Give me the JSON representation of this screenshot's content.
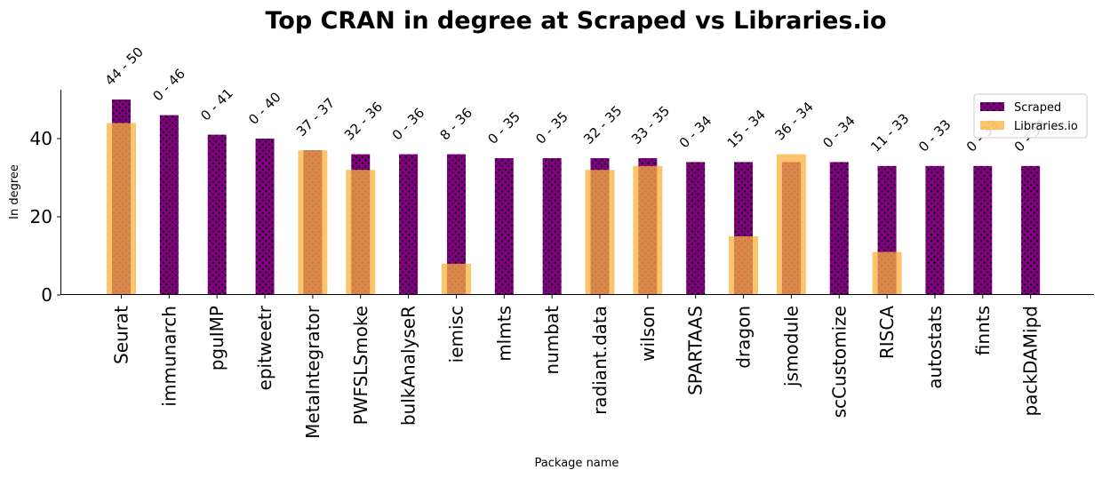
{
  "chart_data": {
    "type": "bar",
    "title": "Top CRAN in degree at Scraped vs Libraries.io",
    "xlabel": "Package name",
    "ylabel": "In degree",
    "ylim": [
      0,
      52
    ],
    "yticks": [
      0,
      20,
      40
    ],
    "grid": false,
    "legend_position": "top-right",
    "categories": [
      "Seurat",
      "immunarch",
      "pguIMP",
      "epitweetr",
      "MetaIntegrator",
      "PWFSLSmoke",
      "bulkAnalyseR",
      "iemisc",
      "mlmts",
      "numbat",
      "radiant.data",
      "wilson",
      "SPARTAAS",
      "dragon",
      "jsmodule",
      "scCustomize",
      "RISCA",
      "autostats",
      "finnts",
      "packDAMipd"
    ],
    "series": [
      {
        "name": "Scraped",
        "color": "#800080",
        "pattern": "dots",
        "values": [
          50,
          46,
          41,
          40,
          37,
          36,
          36,
          36,
          35,
          35,
          35,
          35,
          34,
          34,
          34,
          34,
          33,
          33,
          33,
          33
        ]
      },
      {
        "name": "Libraries.io",
        "color": "#fbb13c",
        "opacity": 0.75,
        "values": [
          44,
          0,
          0,
          0,
          37,
          32,
          0,
          8,
          0,
          0,
          32,
          33,
          0,
          15,
          36,
          0,
          11,
          0,
          0,
          0
        ]
      }
    ],
    "annotations": [
      "44 - 50",
      "0 - 46",
      "0 - 41",
      "0 - 40",
      "37 - 37",
      "32 - 36",
      "0 - 36",
      "8 - 36",
      "0 - 35",
      "0 - 35",
      "32 - 35",
      "33 - 35",
      "0 - 34",
      "15 - 34",
      "36 - 34",
      "0 - 34",
      "11 - 33",
      "0 - 33",
      "0 - 33",
      "0 - 33"
    ]
  }
}
